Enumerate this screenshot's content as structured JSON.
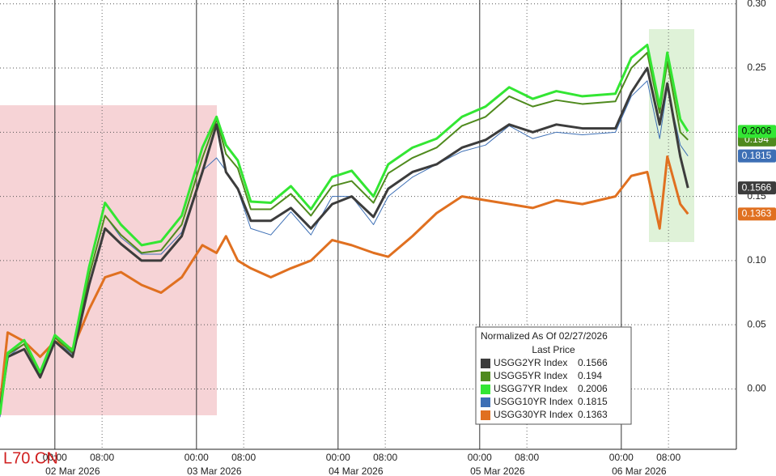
{
  "chart_data": {
    "type": "line",
    "legend_title": "Normalized As Of 02/27/2026",
    "legend_subtitle": "Last Price",
    "watermark": "L70.CN",
    "x": [
      -9.3,
      -8,
      -5.2,
      -2.5,
      0,
      3,
      5.8,
      8.5,
      11.2,
      14.7,
      18,
      21.5,
      25,
      27.4,
      29,
      31,
      33.2,
      36.6,
      40,
      43.4,
      47,
      50.3,
      54,
      56.5,
      60.6,
      64.7,
      69,
      73,
      77,
      81,
      85,
      89.4,
      95,
      97.7,
      100.4,
      102.5,
      103.8,
      106,
      107.3
    ],
    "xlim": [
      -9.3,
      115.5
    ],
    "xticks": [
      {
        "value": 0,
        "label": "00:00"
      },
      {
        "value": 8,
        "label": "08:00"
      },
      {
        "value": 24,
        "label": "00:00"
      },
      {
        "value": 32,
        "label": "08:00"
      },
      {
        "value": 48,
        "label": "00:00"
      },
      {
        "value": 56,
        "label": "08:00"
      },
      {
        "value": 72,
        "label": "00:00"
      },
      {
        "value": 80,
        "label": "08:00"
      },
      {
        "value": 96,
        "label": "00:00"
      },
      {
        "value": 104,
        "label": "08:00"
      }
    ],
    "date_labels": [
      "02 Mar 2026",
      "03 Mar 2026",
      "04 Mar 2026",
      "05 Mar 2026",
      "06 Mar 2026"
    ],
    "ylim": [
      -0.047,
      0.303
    ],
    "yticks": [
      {
        "value": 0,
        "label": "0.00"
      },
      0.05,
      {
        "value": 0.1,
        "label": "0.10"
      },
      0.15,
      {
        "value": 0.2,
        "label": "0.20"
      },
      0.25,
      {
        "value": 0.3,
        "label": "0.30"
      }
    ],
    "grid": true,
    "series": [
      {
        "name": "USGG2YR Index",
        "color": "#3c3c3c",
        "width": 3,
        "last": 0.1566,
        "values": [
          -0.016,
          0.025,
          0.031,
          0.009,
          0.037,
          0.025,
          0.081,
          0.125,
          0.113,
          0.1,
          0.1,
          0.119,
          0.169,
          0.206,
          0.169,
          0.156,
          0.131,
          0.131,
          0.141,
          0.125,
          0.144,
          0.15,
          0.134,
          0.156,
          0.169,
          0.175,
          0.188,
          0.194,
          0.206,
          0.2,
          0.206,
          0.203,
          0.203,
          0.231,
          0.25,
          0.206,
          0.238,
          0.181,
          0.1566
        ]
      },
      {
        "name": "USGG5YR Index",
        "color": "#4f8a1e",
        "width": 2,
        "last": 0.194,
        "values": [
          -0.018,
          0.027,
          0.035,
          0.012,
          0.04,
          0.028,
          0.088,
          0.135,
          0.12,
          0.106,
          0.108,
          0.128,
          0.18,
          0.21,
          0.183,
          0.172,
          0.14,
          0.14,
          0.152,
          0.135,
          0.158,
          0.162,
          0.145,
          0.168,
          0.18,
          0.188,
          0.205,
          0.212,
          0.228,
          0.22,
          0.225,
          0.222,
          0.224,
          0.25,
          0.262,
          0.215,
          0.255,
          0.2,
          0.194
        ]
      },
      {
        "name": "USGG7YR Index",
        "color": "#33e633",
        "width": 3,
        "last": 0.2006,
        "values": [
          -0.02,
          0.028,
          0.038,
          0.013,
          0.042,
          0.03,
          0.095,
          0.145,
          0.128,
          0.112,
          0.115,
          0.135,
          0.188,
          0.212,
          0.19,
          0.178,
          0.146,
          0.145,
          0.158,
          0.14,
          0.165,
          0.17,
          0.15,
          0.175,
          0.188,
          0.195,
          0.212,
          0.22,
          0.235,
          0.226,
          0.232,
          0.228,
          0.23,
          0.258,
          0.268,
          0.22,
          0.262,
          0.21,
          0.2006
        ]
      },
      {
        "name": "USGG10YR Index",
        "color": "#3d6fb5",
        "width": 1,
        "last": 0.1815,
        "values": [
          -0.022,
          0.025,
          0.035,
          0.01,
          0.038,
          0.027,
          0.088,
          0.135,
          0.118,
          0.105,
          0.105,
          0.122,
          0.17,
          0.18,
          0.17,
          0.155,
          0.125,
          0.12,
          0.138,
          0.12,
          0.15,
          0.15,
          0.128,
          0.15,
          0.165,
          0.175,
          0.185,
          0.19,
          0.205,
          0.195,
          0.2,
          0.198,
          0.2,
          0.228,
          0.24,
          0.195,
          0.235,
          0.19,
          0.1815
        ]
      },
      {
        "name": "USGG30YR Index",
        "color": "#e07020",
        "width": 3,
        "last": 0.1363,
        "values": [
          -0.012,
          0.044,
          0.037,
          0.025,
          0.037,
          0.031,
          0.062,
          0.087,
          0.091,
          0.081,
          0.075,
          0.087,
          0.112,
          0.106,
          0.119,
          0.1,
          0.094,
          0.087,
          0.094,
          0.1,
          0.116,
          0.112,
          0.106,
          0.103,
          0.119,
          0.137,
          0.15,
          0.147,
          0.144,
          0.141,
          0.147,
          0.144,
          0.15,
          0.166,
          0.169,
          0.125,
          0.181,
          0.144,
          0.1363
        ]
      }
    ]
  }
}
